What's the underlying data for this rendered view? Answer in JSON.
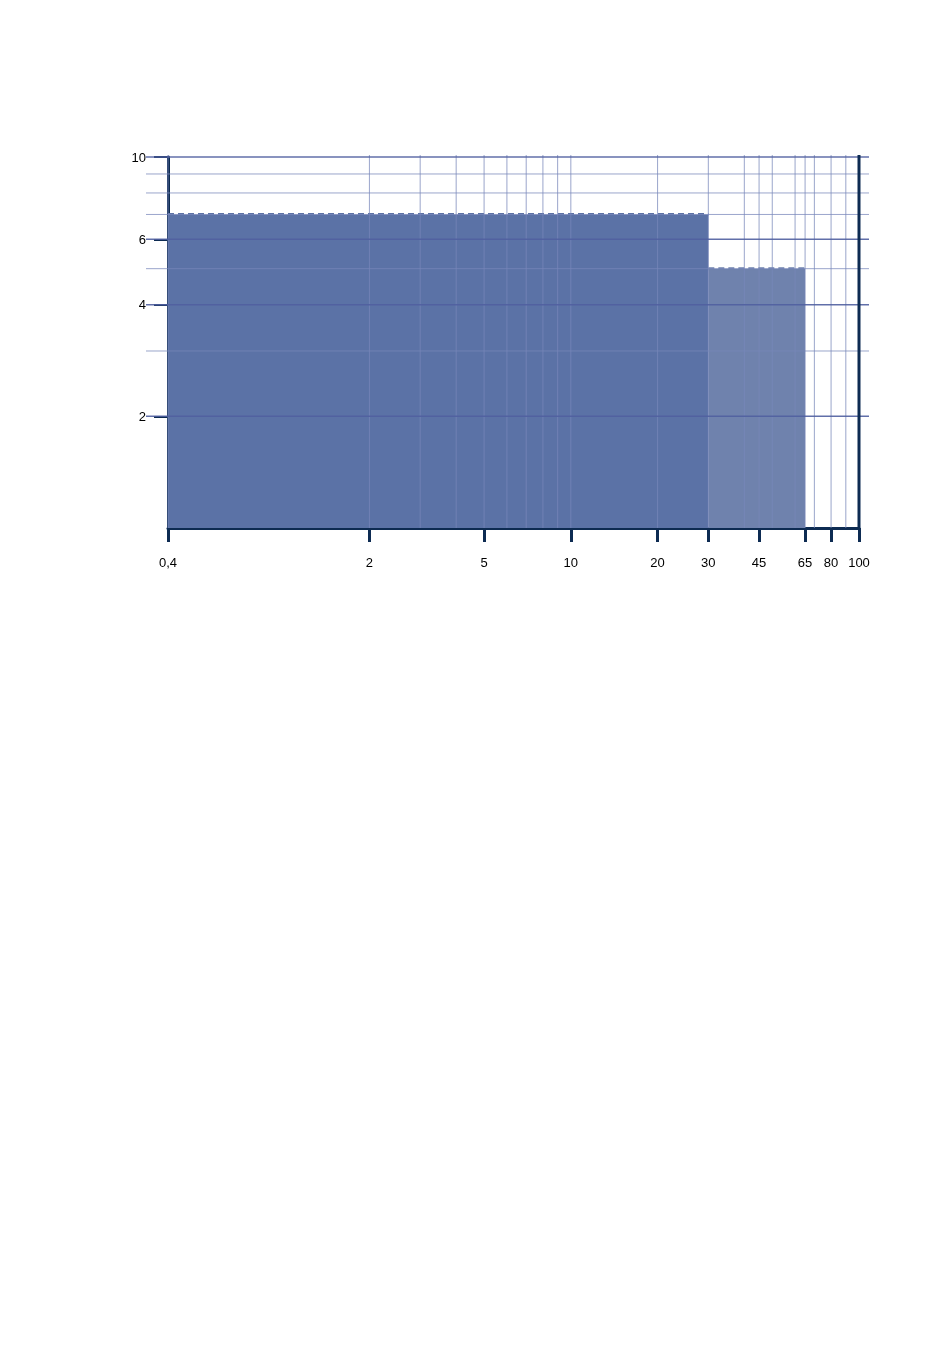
{
  "chart_data": {
    "type": "area",
    "log": "xy",
    "grid": true,
    "line_style": "dashed",
    "marker": "none",
    "xlim": [
      0.4,
      100
    ],
    "ylim": [
      1,
      10
    ],
    "xticks": [
      {
        "value": 0.4,
        "label": "0,4"
      },
      2,
      {
        "value": 3,
        "label": null
      },
      {
        "value": 4,
        "label": null
      },
      5,
      {
        "value": 6,
        "label": null
      },
      {
        "value": 7,
        "label": null
      },
      {
        "value": 8,
        "label": null
      },
      {
        "value": 9,
        "label": null
      },
      10,
      20,
      30,
      {
        "value": 40,
        "label": null
      },
      45,
      {
        "value": 50,
        "label": null
      },
      {
        "value": 60,
        "label": null
      },
      65,
      {
        "value": 70,
        "label": null
      },
      80,
      {
        "value": 90,
        "label": null
      },
      100
    ],
    "yticks": [
      2,
      {
        "value": 3,
        "label": null
      },
      4,
      {
        "value": 5,
        "label": null
      },
      6,
      {
        "value": 7,
        "label": null
      },
      {
        "value": 8,
        "label": null
      },
      {
        "value": 9,
        "label": null
      },
      10
    ],
    "series": [
      {
        "color": "#5b72a6",
        "x": [
          0.4,
          30
        ],
        "values": [
          7,
          7
        ]
      },
      {
        "color": "#6f82ad",
        "x": [
          30,
          65
        ],
        "values": [
          5,
          5
        ]
      }
    ]
  }
}
